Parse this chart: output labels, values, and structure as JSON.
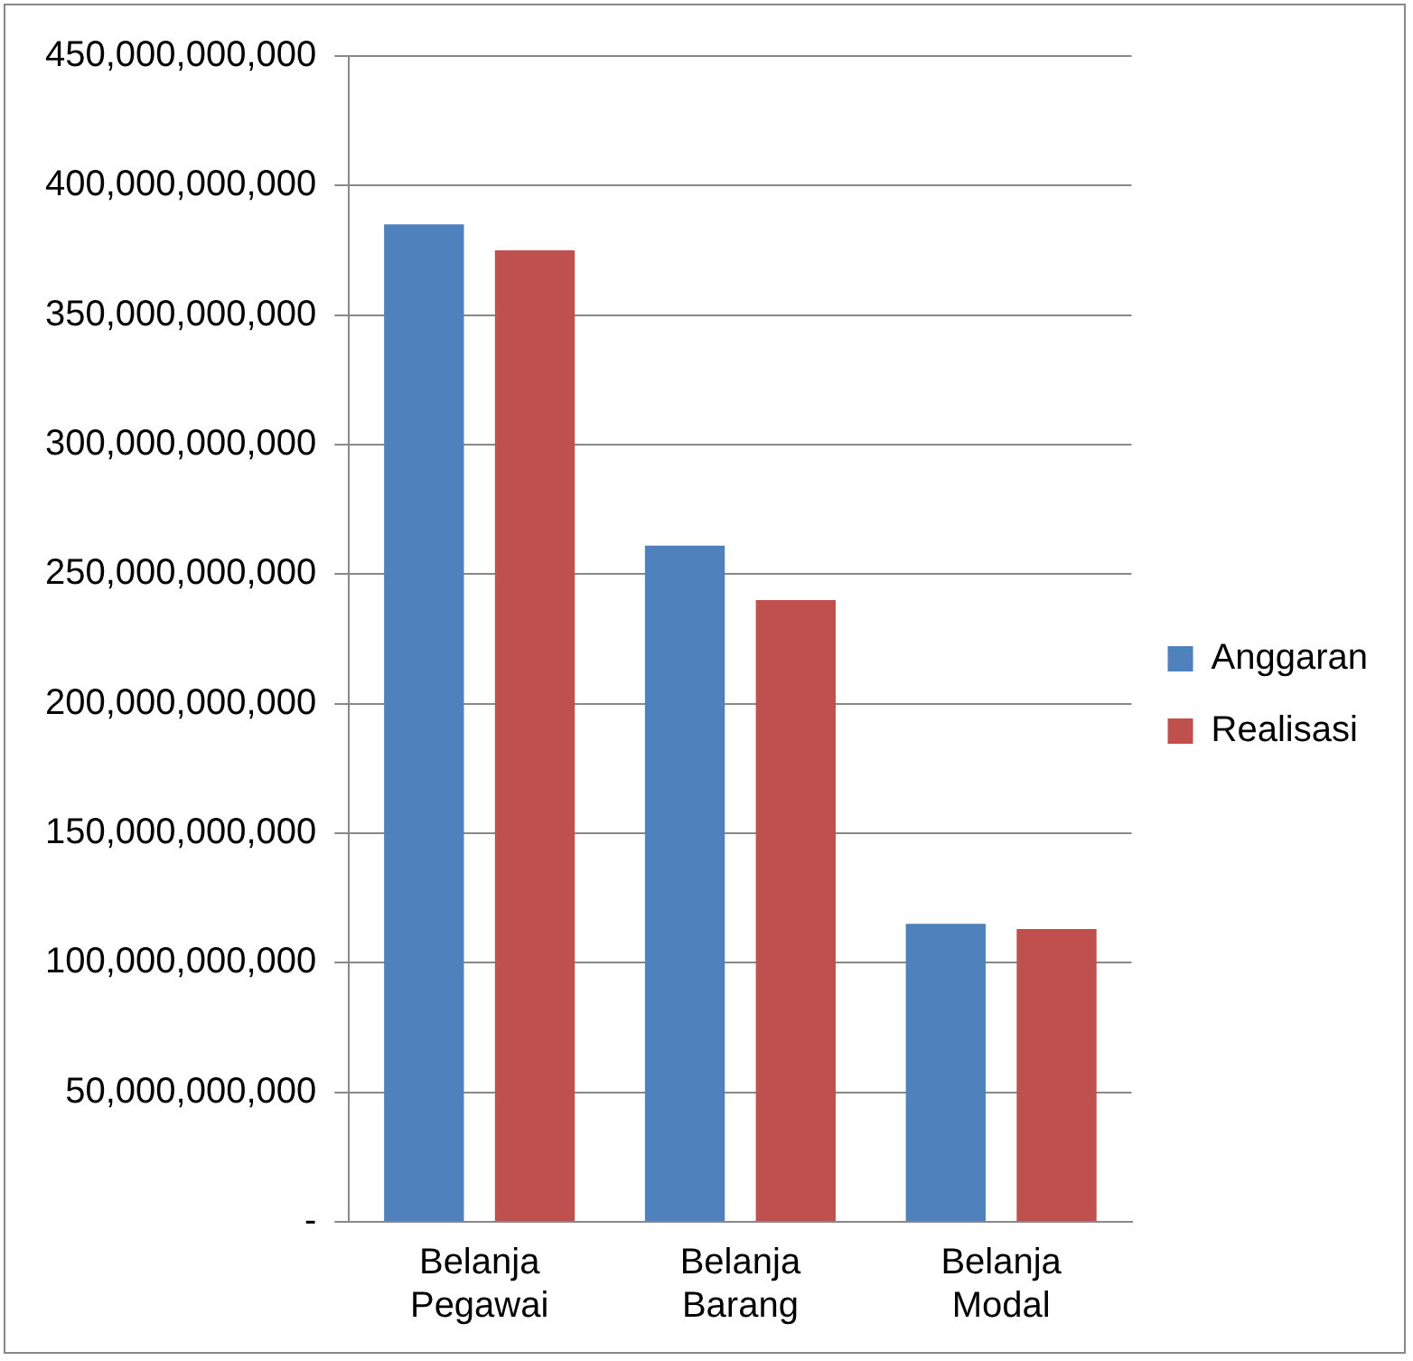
{
  "chart_data": {
    "type": "bar",
    "categories": [
      "Belanja Pegawai",
      "Belanja Barang",
      "Belanja Modal"
    ],
    "series": [
      {
        "name": "Anggaran",
        "color": "#4f81bd",
        "values": [
          385000000000,
          261000000000,
          115000000000
        ]
      },
      {
        "name": "Realisasi",
        "color": "#c0504d",
        "values": [
          375000000000,
          240000000000,
          113000000000
        ]
      }
    ],
    "ylim": [
      0,
      450000000000
    ],
    "yticks": [
      {
        "value": 0,
        "label": "-"
      },
      {
        "value": 50000000000,
        "label": "50,000,000,000"
      },
      {
        "value": 100000000000,
        "label": "100,000,000,000"
      },
      {
        "value": 150000000000,
        "label": "150,000,000,000"
      },
      {
        "value": 200000000000,
        "label": "200,000,000,000"
      },
      {
        "value": 250000000000,
        "label": "250,000,000,000"
      },
      {
        "value": 300000000000,
        "label": "300,000,000,000"
      },
      {
        "value": 350000000000,
        "label": "350,000,000,000"
      },
      {
        "value": 400000000000,
        "label": "400,000,000,000"
      },
      {
        "value": 450000000000,
        "label": "450,000,000,000"
      }
    ],
    "grid": "y",
    "legend": "right"
  }
}
